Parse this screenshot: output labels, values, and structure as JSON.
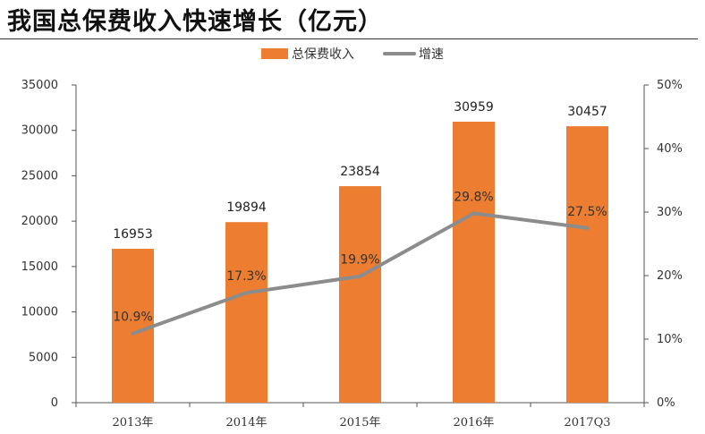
{
  "page": {
    "title": "我国总保费收入快速增长（亿元）"
  },
  "colors": {
    "bar": "#ED7D31",
    "line": "#8C8C8C"
  },
  "chart_data": {
    "type": "bar",
    "categories": [
      "2013年",
      "2014年",
      "2015年",
      "2016年",
      "2017Q3"
    ],
    "series": [
      {
        "name": "总保费收入",
        "type": "bar",
        "axis": "left",
        "values": [
          16953,
          19894,
          23854,
          30959,
          30457
        ]
      },
      {
        "name": "增速",
        "type": "line",
        "axis": "right",
        "values": [
          10.9,
          17.3,
          19.9,
          29.8,
          27.5
        ],
        "labels": [
          "10.9%",
          "17.3%",
          "19.9%",
          "29.8%",
          "27.5%"
        ]
      }
    ],
    "y_left": {
      "min": 0,
      "max": 35000,
      "step": 5000,
      "ticks": [
        "0",
        "5000",
        "10000",
        "15000",
        "20000",
        "25000",
        "30000",
        "35000"
      ]
    },
    "y_right": {
      "min": 0,
      "max": 50,
      "step": 10,
      "ticks": [
        "0%",
        "10%",
        "20%",
        "30%",
        "40%",
        "50%"
      ]
    },
    "legend_position": "top-center",
    "grid": false
  }
}
